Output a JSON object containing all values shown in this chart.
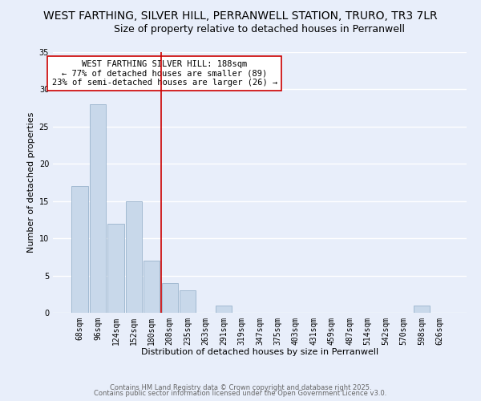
{
  "title1": "WEST FARTHING, SILVER HILL, PERRANWELL STATION, TRURO, TR3 7LR",
  "title2": "Size of property relative to detached houses in Perranwell",
  "xlabel": "Distribution of detached houses by size in Perranwell",
  "ylabel": "Number of detached properties",
  "bar_labels": [
    "68sqm",
    "96sqm",
    "124sqm",
    "152sqm",
    "180sqm",
    "208sqm",
    "235sqm",
    "263sqm",
    "291sqm",
    "319sqm",
    "347sqm",
    "375sqm",
    "403sqm",
    "431sqm",
    "459sqm",
    "487sqm",
    "514sqm",
    "542sqm",
    "570sqm",
    "598sqm",
    "626sqm"
  ],
  "bar_values": [
    17,
    28,
    12,
    15,
    7,
    4,
    3,
    0,
    1,
    0,
    0,
    0,
    0,
    0,
    0,
    0,
    0,
    0,
    0,
    1,
    0
  ],
  "bar_color": "#c8d8ea",
  "bar_edge_color": "#9ab4cc",
  "vline_x": 4.5,
  "vline_color": "#cc0000",
  "annotation_text": "WEST FARTHING SILVER HILL: 188sqm\n← 77% of detached houses are smaller (89)\n23% of semi-detached houses are larger (26) →",
  "annotation_box_edgecolor": "#cc0000",
  "ylim": [
    0,
    35
  ],
  "yticks": [
    0,
    5,
    10,
    15,
    20,
    25,
    30,
    35
  ],
  "background_color": "#e8eefa",
  "footer1": "Contains HM Land Registry data © Crown copyright and database right 2025.",
  "footer2": "Contains public sector information licensed under the Open Government Licence v3.0.",
  "grid_color": "#ffffff",
  "title1_fontsize": 10,
  "title2_fontsize": 9,
  "annotation_fontsize": 7.5,
  "tick_fontsize": 7,
  "axis_label_fontsize": 8,
  "footer_fontsize": 6,
  "footer_color": "#666666"
}
